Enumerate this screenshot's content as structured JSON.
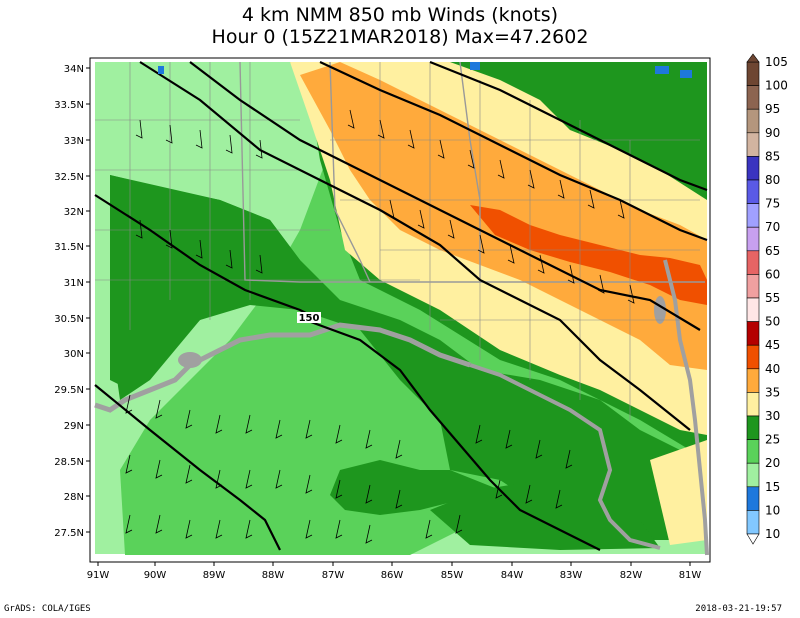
{
  "title_line1": "4 km NMM 850 mb Winds (knots)",
  "title_line2": "Hour 0 (15Z21MAR2018) Max=47.2602",
  "footer_left": "GrADS: COLA/IGES",
  "footer_right": "2018-03-21-19:57",
  "contour_label": "150",
  "lat_labels": [
    "34N",
    "33.5N",
    "33N",
    "32.5N",
    "32N",
    "31.5N",
    "31N",
    "30.5N",
    "30N",
    "29.5N",
    "29N",
    "28.5N",
    "28N",
    "27.5N"
  ],
  "lon_labels": [
    "91W",
    "90W",
    "89W",
    "88W",
    "87W",
    "86W",
    "85W",
    "84W",
    "83W",
    "82W",
    "81W"
  ],
  "colorbar": [
    {
      "value": "105",
      "color": "#6e4632"
    },
    {
      "value": "100",
      "color": "#8c6450"
    },
    {
      "value": "95",
      "color": "#b4967d"
    },
    {
      "value": "90",
      "color": "#d2b4a0"
    },
    {
      "value": "85",
      "color": "#3a34c0"
    },
    {
      "value": "80",
      "color": "#5a5ae6"
    },
    {
      "value": "75",
      "color": "#a0a0ff"
    },
    {
      "value": "70",
      "color": "#c8a0f0"
    },
    {
      "value": "65",
      "color": "#e66464"
    },
    {
      "value": "60",
      "color": "#f0a0a0"
    },
    {
      "value": "55",
      "color": "#ffe6e6"
    },
    {
      "value": "50",
      "color": "#b40000"
    },
    {
      "value": "45",
      "color": "#f05000"
    },
    {
      "value": "40",
      "color": "#ffaa3c"
    },
    {
      "value": "35",
      "color": "#fff0a0"
    },
    {
      "value": "30",
      "color": "#1e961e"
    },
    {
      "value": "25",
      "color": "#5ad25a"
    },
    {
      "value": "20",
      "color": "#a0f0a0"
    },
    {
      "value": "15",
      "color": "#1e78dc"
    },
    {
      "value": "10",
      "color": "#82c8ff"
    }
  ],
  "colorbar_bottom_label": "10"
}
